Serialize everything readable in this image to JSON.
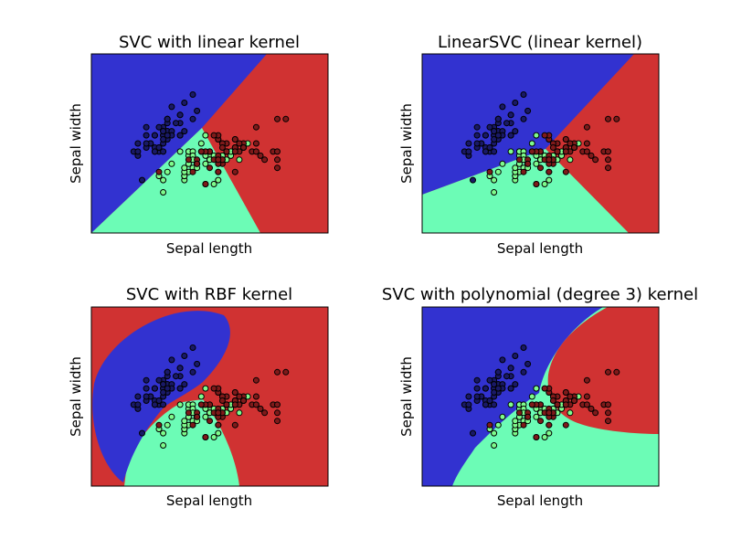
{
  "figure": {
    "background": "#ffffff"
  },
  "colors": {
    "class_0": "#3232d0",
    "class_1": "#6cfcb6",
    "class_2": "#d03232",
    "point_0": "#191966",
    "point_1": "#7efb8c",
    "point_2": "#7f1a1a"
  },
  "chart_data": [
    {
      "type": "scatter",
      "title": "SVC with linear kernel",
      "xlabel": "Sepal length",
      "ylabel": "Sepal width",
      "xlim": [
        3.3,
        8.9
      ],
      "ylim": [
        1.0,
        5.4
      ],
      "ticks": false,
      "background_regions": "decision regions of 3 classes (linear boundaries)"
    },
    {
      "type": "scatter",
      "title": "LinearSVC (linear kernel)",
      "xlabel": "Sepal length",
      "ylabel": "Sepal width",
      "xlim": [
        3.3,
        8.9
      ],
      "ylim": [
        1.0,
        5.4
      ],
      "ticks": false,
      "background_regions": "decision regions of 3 classes (linear boundaries)"
    },
    {
      "type": "scatter",
      "title": "SVC with RBF kernel",
      "xlabel": "Sepal length",
      "ylabel": "Sepal width",
      "xlim": [
        3.3,
        8.9
      ],
      "ylim": [
        1.0,
        5.4
      ],
      "ticks": false,
      "background_regions": "decision regions of 3 classes (curved boundaries)"
    },
    {
      "type": "scatter",
      "title": "SVC with polynomial (degree 3) kernel",
      "xlabel": "Sepal length",
      "ylabel": "Sepal width",
      "xlim": [
        3.3,
        8.9
      ],
      "ylim": [
        1.0,
        5.4
      ],
      "ticks": false,
      "background_regions": "decision regions of 3 classes (curved boundaries)"
    }
  ],
  "points": [
    {
      "x": 5.1,
      "y": 3.5,
      "c": 0
    },
    {
      "x": 4.9,
      "y": 3.0,
      "c": 0
    },
    {
      "x": 4.7,
      "y": 3.2,
      "c": 0
    },
    {
      "x": 4.6,
      "y": 3.1,
      "c": 0
    },
    {
      "x": 5.0,
      "y": 3.6,
      "c": 0
    },
    {
      "x": 5.4,
      "y": 3.9,
      "c": 0
    },
    {
      "x": 4.6,
      "y": 3.4,
      "c": 0
    },
    {
      "x": 5.0,
      "y": 3.4,
      "c": 0
    },
    {
      "x": 4.4,
      "y": 2.9,
      "c": 0
    },
    {
      "x": 4.9,
      "y": 3.1,
      "c": 0
    },
    {
      "x": 5.4,
      "y": 3.7,
      "c": 0
    },
    {
      "x": 4.8,
      "y": 3.4,
      "c": 0
    },
    {
      "x": 4.8,
      "y": 3.0,
      "c": 0
    },
    {
      "x": 4.3,
      "y": 3.0,
      "c": 0
    },
    {
      "x": 5.8,
      "y": 4.0,
      "c": 0
    },
    {
      "x": 5.7,
      "y": 4.4,
      "c": 0
    },
    {
      "x": 5.4,
      "y": 3.9,
      "c": 0
    },
    {
      "x": 5.1,
      "y": 3.5,
      "c": 0
    },
    {
      "x": 5.7,
      "y": 3.8,
      "c": 0
    },
    {
      "x": 5.1,
      "y": 3.8,
      "c": 0
    },
    {
      "x": 5.4,
      "y": 3.4,
      "c": 0
    },
    {
      "x": 5.1,
      "y": 3.7,
      "c": 0
    },
    {
      "x": 4.6,
      "y": 3.6,
      "c": 0
    },
    {
      "x": 5.1,
      "y": 3.3,
      "c": 0
    },
    {
      "x": 4.8,
      "y": 3.4,
      "c": 0
    },
    {
      "x": 5.0,
      "y": 3.0,
      "c": 0
    },
    {
      "x": 5.0,
      "y": 3.4,
      "c": 0
    },
    {
      "x": 5.2,
      "y": 3.5,
      "c": 0
    },
    {
      "x": 5.2,
      "y": 3.4,
      "c": 0
    },
    {
      "x": 4.7,
      "y": 3.2,
      "c": 0
    },
    {
      "x": 4.8,
      "y": 3.1,
      "c": 0
    },
    {
      "x": 5.4,
      "y": 3.4,
      "c": 0
    },
    {
      "x": 5.2,
      "y": 4.1,
      "c": 0
    },
    {
      "x": 5.5,
      "y": 4.2,
      "c": 0
    },
    {
      "x": 4.9,
      "y": 3.1,
      "c": 0
    },
    {
      "x": 5.0,
      "y": 3.2,
      "c": 0
    },
    {
      "x": 5.5,
      "y": 3.5,
      "c": 0
    },
    {
      "x": 4.9,
      "y": 3.6,
      "c": 0
    },
    {
      "x": 4.4,
      "y": 3.0,
      "c": 0
    },
    {
      "x": 5.1,
      "y": 3.4,
      "c": 0
    },
    {
      "x": 5.0,
      "y": 3.5,
      "c": 0
    },
    {
      "x": 4.5,
      "y": 2.3,
      "c": 0
    },
    {
      "x": 4.4,
      "y": 3.2,
      "c": 0
    },
    {
      "x": 5.0,
      "y": 3.5,
      "c": 0
    },
    {
      "x": 5.1,
      "y": 3.8,
      "c": 0
    },
    {
      "x": 4.8,
      "y": 3.0,
      "c": 0
    },
    {
      "x": 5.1,
      "y": 3.8,
      "c": 0
    },
    {
      "x": 4.6,
      "y": 3.2,
      "c": 0
    },
    {
      "x": 5.3,
      "y": 3.7,
      "c": 0
    },
    {
      "x": 5.0,
      "y": 3.3,
      "c": 0
    },
    {
      "x": 7.0,
      "y": 3.2,
      "c": 1
    },
    {
      "x": 6.4,
      "y": 3.2,
      "c": 1
    },
    {
      "x": 6.9,
      "y": 3.1,
      "c": 1
    },
    {
      "x": 5.5,
      "y": 2.3,
      "c": 1
    },
    {
      "x": 6.5,
      "y": 2.8,
      "c": 1
    },
    {
      "x": 5.7,
      "y": 2.8,
      "c": 1
    },
    {
      "x": 6.3,
      "y": 3.3,
      "c": 1
    },
    {
      "x": 4.9,
      "y": 2.4,
      "c": 1
    },
    {
      "x": 6.6,
      "y": 2.9,
      "c": 1
    },
    {
      "x": 5.2,
      "y": 2.7,
      "c": 1
    },
    {
      "x": 5.0,
      "y": 2.0,
      "c": 1
    },
    {
      "x": 5.9,
      "y": 3.0,
      "c": 1
    },
    {
      "x": 6.0,
      "y": 2.2,
      "c": 1
    },
    {
      "x": 6.1,
      "y": 2.9,
      "c": 1
    },
    {
      "x": 5.6,
      "y": 2.9,
      "c": 1
    },
    {
      "x": 6.7,
      "y": 3.1,
      "c": 1
    },
    {
      "x": 5.6,
      "y": 3.0,
      "c": 1
    },
    {
      "x": 5.8,
      "y": 2.7,
      "c": 1
    },
    {
      "x": 6.2,
      "y": 2.2,
      "c": 1
    },
    {
      "x": 5.6,
      "y": 2.5,
      "c": 1
    },
    {
      "x": 5.9,
      "y": 3.2,
      "c": 1
    },
    {
      "x": 6.1,
      "y": 2.8,
      "c": 1
    },
    {
      "x": 6.3,
      "y": 2.5,
      "c": 1
    },
    {
      "x": 6.1,
      "y": 2.8,
      "c": 1
    },
    {
      "x": 6.4,
      "y": 2.9,
      "c": 1
    },
    {
      "x": 6.6,
      "y": 3.0,
      "c": 1
    },
    {
      "x": 6.8,
      "y": 2.8,
      "c": 1
    },
    {
      "x": 6.7,
      "y": 3.0,
      "c": 1
    },
    {
      "x": 6.0,
      "y": 2.9,
      "c": 1
    },
    {
      "x": 5.7,
      "y": 2.6,
      "c": 1
    },
    {
      "x": 5.5,
      "y": 2.4,
      "c": 1
    },
    {
      "x": 5.5,
      "y": 2.4,
      "c": 1
    },
    {
      "x": 5.8,
      "y": 2.7,
      "c": 1
    },
    {
      "x": 6.0,
      "y": 2.7,
      "c": 1
    },
    {
      "x": 5.4,
      "y": 3.0,
      "c": 1
    },
    {
      "x": 6.0,
      "y": 3.4,
      "c": 1
    },
    {
      "x": 6.7,
      "y": 3.1,
      "c": 1
    },
    {
      "x": 6.3,
      "y": 2.3,
      "c": 1
    },
    {
      "x": 5.6,
      "y": 3.0,
      "c": 1
    },
    {
      "x": 5.5,
      "y": 2.5,
      "c": 1
    },
    {
      "x": 5.5,
      "y": 2.6,
      "c": 1
    },
    {
      "x": 6.1,
      "y": 3.0,
      "c": 1
    },
    {
      "x": 5.8,
      "y": 2.6,
      "c": 1
    },
    {
      "x": 5.0,
      "y": 2.3,
      "c": 1
    },
    {
      "x": 5.6,
      "y": 2.7,
      "c": 1
    },
    {
      "x": 5.7,
      "y": 3.0,
      "c": 1
    },
    {
      "x": 5.7,
      "y": 2.9,
      "c": 1
    },
    {
      "x": 6.2,
      "y": 2.9,
      "c": 1
    },
    {
      "x": 5.1,
      "y": 2.5,
      "c": 1
    },
    {
      "x": 5.7,
      "y": 2.8,
      "c": 1
    },
    {
      "x": 6.3,
      "y": 3.3,
      "c": 2
    },
    {
      "x": 5.8,
      "y": 2.7,
      "c": 2
    },
    {
      "x": 7.1,
      "y": 3.0,
      "c": 2
    },
    {
      "x": 6.3,
      "y": 2.9,
      "c": 2
    },
    {
      "x": 6.5,
      "y": 3.0,
      "c": 2
    },
    {
      "x": 7.6,
      "y": 3.0,
      "c": 2
    },
    {
      "x": 4.9,
      "y": 2.5,
      "c": 2
    },
    {
      "x": 7.3,
      "y": 2.9,
      "c": 2
    },
    {
      "x": 6.7,
      "y": 2.5,
      "c": 2
    },
    {
      "x": 7.2,
      "y": 3.6,
      "c": 2
    },
    {
      "x": 6.5,
      "y": 3.2,
      "c": 2
    },
    {
      "x": 6.4,
      "y": 2.7,
      "c": 2
    },
    {
      "x": 6.8,
      "y": 3.0,
      "c": 2
    },
    {
      "x": 5.7,
      "y": 2.5,
      "c": 2
    },
    {
      "x": 5.8,
      "y": 2.8,
      "c": 2
    },
    {
      "x": 6.4,
      "y": 3.2,
      "c": 2
    },
    {
      "x": 6.5,
      "y": 3.0,
      "c": 2
    },
    {
      "x": 7.7,
      "y": 3.8,
      "c": 2
    },
    {
      "x": 7.7,
      "y": 2.6,
      "c": 2
    },
    {
      "x": 6.0,
      "y": 2.2,
      "c": 2
    },
    {
      "x": 6.9,
      "y": 3.2,
      "c": 2
    },
    {
      "x": 5.6,
      "y": 2.8,
      "c": 2
    },
    {
      "x": 7.7,
      "y": 2.8,
      "c": 2
    },
    {
      "x": 6.3,
      "y": 2.7,
      "c": 2
    },
    {
      "x": 6.7,
      "y": 3.3,
      "c": 2
    },
    {
      "x": 7.2,
      "y": 3.2,
      "c": 2
    },
    {
      "x": 6.2,
      "y": 2.8,
      "c": 2
    },
    {
      "x": 6.1,
      "y": 3.0,
      "c": 2
    },
    {
      "x": 6.4,
      "y": 2.8,
      "c": 2
    },
    {
      "x": 7.2,
      "y": 3.0,
      "c": 2
    },
    {
      "x": 7.4,
      "y": 2.8,
      "c": 2
    },
    {
      "x": 7.9,
      "y": 3.8,
      "c": 2
    },
    {
      "x": 6.4,
      "y": 2.8,
      "c": 2
    },
    {
      "x": 6.3,
      "y": 2.8,
      "c": 2
    },
    {
      "x": 6.1,
      "y": 2.6,
      "c": 2
    },
    {
      "x": 7.7,
      "y": 3.0,
      "c": 2
    },
    {
      "x": 6.3,
      "y": 3.4,
      "c": 2
    },
    {
      "x": 6.4,
      "y": 3.1,
      "c": 2
    },
    {
      "x": 6.0,
      "y": 3.0,
      "c": 2
    },
    {
      "x": 6.9,
      "y": 3.1,
      "c": 2
    },
    {
      "x": 6.7,
      "y": 3.1,
      "c": 2
    },
    {
      "x": 6.9,
      "y": 3.1,
      "c": 2
    },
    {
      "x": 5.8,
      "y": 2.7,
      "c": 2
    },
    {
      "x": 6.8,
      "y": 3.2,
      "c": 2
    },
    {
      "x": 6.7,
      "y": 3.3,
      "c": 2
    },
    {
      "x": 6.7,
      "y": 3.0,
      "c": 2
    },
    {
      "x": 6.3,
      "y": 2.5,
      "c": 2
    },
    {
      "x": 6.5,
      "y": 3.0,
      "c": 2
    },
    {
      "x": 6.2,
      "y": 3.4,
      "c": 2
    },
    {
      "x": 5.9,
      "y": 3.0,
      "c": 2
    }
  ]
}
